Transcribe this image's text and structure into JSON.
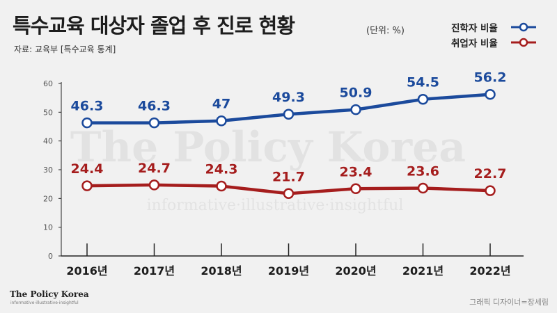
{
  "header": {
    "title": "특수교육 대상자 졸업 후 진로 현황",
    "unit": "(단위: %)",
    "source": "자료: 교육부 [특수교육 통계]"
  },
  "watermark": {
    "main": "The Policy Korea",
    "tagline": "informative·illustrative·insightful"
  },
  "footer": {
    "brand": "The Policy Korea",
    "brand_tagline": "informative·illustrative·insightful",
    "credit": "그래픽 디자이너=장세림"
  },
  "colors": {
    "series1": "#1b4a9c",
    "series2": "#a51d1d",
    "axis": "#222222",
    "tick_text": "#555555",
    "marker_fill": "#ffffff"
  },
  "chart_data": {
    "type": "line",
    "title": "특수교육 대상자 졸업 후 진로 현황",
    "categories": [
      "2016년",
      "2017년",
      "2018년",
      "2019년",
      "2020년",
      "2021년",
      "2022년"
    ],
    "series": [
      {
        "name": "진학자 비율",
        "values": [
          46.3,
          46.3,
          47,
          49.3,
          50.9,
          54.5,
          56.2
        ]
      },
      {
        "name": "취업자 비율",
        "values": [
          24.4,
          24.7,
          24.3,
          21.7,
          23.4,
          23.6,
          22.7
        ]
      }
    ],
    "ylim": [
      0,
      60
    ],
    "yticks": [
      0,
      10,
      20,
      30,
      40,
      50,
      60
    ],
    "grid": false,
    "legend_position": "top-right",
    "data_labels": true
  }
}
